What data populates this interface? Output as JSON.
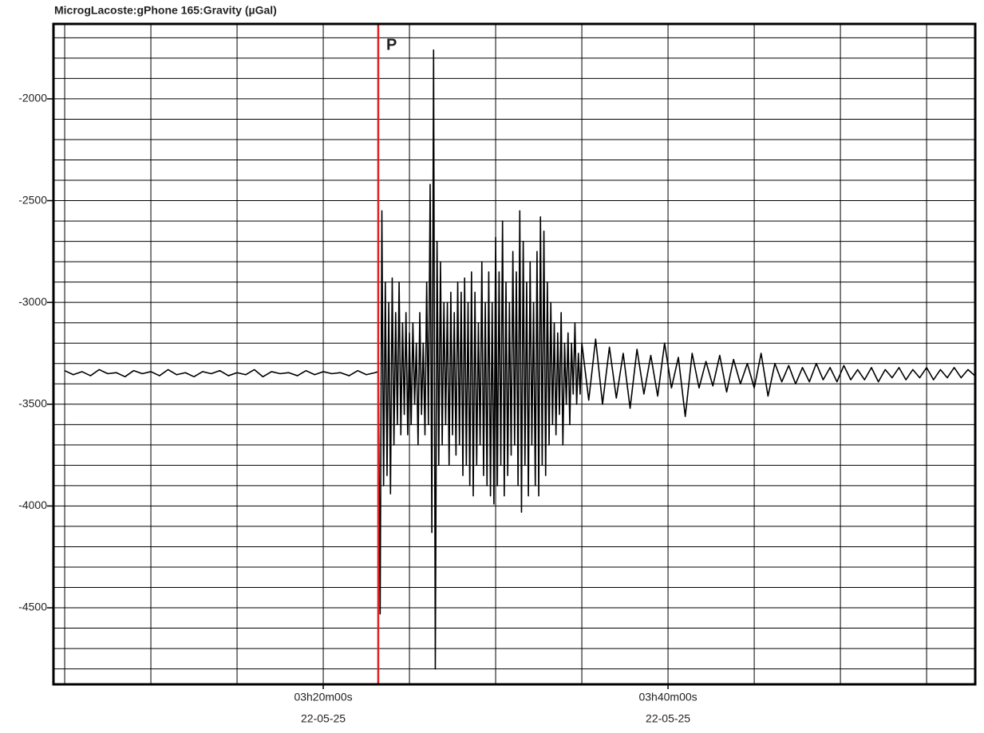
{
  "chart_data": {
    "type": "line",
    "title": "MicrogLacoste:gPhone 165:Gravity (µGal)",
    "xlim": [
      184.35,
      237.82
    ],
    "ylim": [
      -4876,
      -1632
    ],
    "xticks": [
      {
        "value": 200,
        "label": "03h20m00s"
      },
      {
        "value": 220,
        "label": "03h40m00s"
      }
    ],
    "x_date_labels": [
      "22-05-25",
      "22-05-25"
    ],
    "yticks": [
      -2000,
      -2500,
      -3000,
      -3500,
      -4000,
      -4500
    ],
    "xgrid": [
      185,
      190,
      195,
      205,
      210,
      215,
      225,
      230,
      235
    ],
    "ygrid": [
      -4800,
      -4700,
      -4600,
      -4400,
      -4300,
      -4200,
      -4100,
      -3900,
      -3800,
      -3700,
      -3600,
      -3400,
      -3300,
      -3200,
      -3100,
      -2900,
      -2800,
      -2700,
      -2600,
      -2400,
      -2300,
      -2200,
      -2100,
      -1900,
      -1800,
      -1700
    ],
    "grid": true,
    "annotations": [
      {
        "x": 203.19,
        "label": "P",
        "color": "#e02020"
      }
    ],
    "series": [
      {
        "name": "Gravity",
        "color": "#000000",
        "x": [
          185,
          185.5,
          186,
          186.5,
          187,
          187.5,
          188,
          188.5,
          189,
          189.5,
          190,
          190.5,
          191,
          191.5,
          192,
          192.5,
          193,
          193.5,
          194,
          194.5,
          195,
          195.5,
          196,
          196.5,
          197,
          197.5,
          198,
          198.5,
          199,
          199.5,
          200,
          200.5,
          201,
          201.5,
          202,
          202.5,
          203,
          203.2,
          203.3,
          203.4,
          203.5,
          203.6,
          203.7,
          203.8,
          203.9,
          204.0,
          204.1,
          204.2,
          204.3,
          204.4,
          204.5,
          204.6,
          204.7,
          204.8,
          204.9,
          205.0,
          205.1,
          205.2,
          205.3,
          205.4,
          205.5,
          205.6,
          205.7,
          205.8,
          205.9,
          206.0,
          206.1,
          206.2,
          206.3,
          206.4,
          206.5,
          206.6,
          206.7,
          206.8,
          206.9,
          207.0,
          207.1,
          207.2,
          207.3,
          207.4,
          207.5,
          207.6,
          207.7,
          207.8,
          207.9,
          208.0,
          208.1,
          208.2,
          208.3,
          208.4,
          208.5,
          208.6,
          208.7,
          208.8,
          208.9,
          209.0,
          209.1,
          209.2,
          209.3,
          209.4,
          209.5,
          209.6,
          209.7,
          209.8,
          209.9,
          210.0,
          210.1,
          210.2,
          210.3,
          210.4,
          210.5,
          210.6,
          210.7,
          210.8,
          210.9,
          211.0,
          211.1,
          211.2,
          211.3,
          211.4,
          211.5,
          211.6,
          211.7,
          211.8,
          211.9,
          212.0,
          212.1,
          212.2,
          212.3,
          212.4,
          212.5,
          212.6,
          212.7,
          212.8,
          212.9,
          213.0,
          213.1,
          213.2,
          213.3,
          213.4,
          213.5,
          213.6,
          213.7,
          213.8,
          213.9,
          214.0,
          214.1,
          214.2,
          214.3,
          214.4,
          214.5,
          214.6,
          214.7,
          214.8,
          214.9,
          215.0,
          215.4,
          215.8,
          216.2,
          216.6,
          217.0,
          217.4,
          217.8,
          218.2,
          218.6,
          219.0,
          219.4,
          219.8,
          220.2,
          220.6,
          221.0,
          221.4,
          221.8,
          222.2,
          222.6,
          223.0,
          223.4,
          223.8,
          224.2,
          224.6,
          225.0,
          225.4,
          225.8,
          226.2,
          226.6,
          227.0,
          227.4,
          227.8,
          228.2,
          228.6,
          229.0,
          229.4,
          229.8,
          230.2,
          230.6,
          231.0,
          231.4,
          231.8,
          232.2,
          232.6,
          233.0,
          233.4,
          233.8,
          234.2,
          234.6,
          235.0,
          235.4,
          235.8,
          236.2,
          236.6,
          237.0,
          237.4,
          237.8
        ],
        "values": [
          -3335,
          -3355,
          -3340,
          -3360,
          -3330,
          -3350,
          -3345,
          -3365,
          -3335,
          -3350,
          -3340,
          -3360,
          -3330,
          -3355,
          -3345,
          -3365,
          -3340,
          -3350,
          -3335,
          -3360,
          -3345,
          -3355,
          -3330,
          -3365,
          -3340,
          -3350,
          -3345,
          -3360,
          -3335,
          -3355,
          -3340,
          -3350,
          -3345,
          -3360,
          -3335,
          -3355,
          -3345,
          -3340,
          -4530,
          -2550,
          -3900,
          -2900,
          -3850,
          -3000,
          -3940,
          -2880,
          -3700,
          -3050,
          -3600,
          -2900,
          -3650,
          -3100,
          -3550,
          -3050,
          -3650,
          -3150,
          -3600,
          -3100,
          -3500,
          -3200,
          -3700,
          -3050,
          -3550,
          -3200,
          -3650,
          -2900,
          -3600,
          -2420,
          -4130,
          -1760,
          -4800,
          -2700,
          -3800,
          -2800,
          -3700,
          -3000,
          -3600,
          -3000,
          -3800,
          -2950,
          -3650,
          -3050,
          -3750,
          -2900,
          -3700,
          -2950,
          -3850,
          -2880,
          -3800,
          -3000,
          -3900,
          -2850,
          -3950,
          -2950,
          -3800,
          -3100,
          -3700,
          -2800,
          -3850,
          -3000,
          -3900,
          -2850,
          -3950,
          -3000,
          -3990,
          -2680,
          -3900,
          -2850,
          -3800,
          -2600,
          -3950,
          -2900,
          -3850,
          -3000,
          -3750,
          -2750,
          -3700,
          -2850,
          -3900,
          -2550,
          -4030,
          -2700,
          -3800,
          -2900,
          -3950,
          -2800,
          -3700,
          -3000,
          -3900,
          -2750,
          -3950,
          -2580,
          -3800,
          -2650,
          -3850,
          -2900,
          -3700,
          -3000,
          -3600,
          -3100,
          -3650,
          -3150,
          -3550,
          -3050,
          -3700,
          -3200,
          -3500,
          -3150,
          -3600,
          -3200,
          -3450,
          -3100,
          -3500,
          -3250,
          -3450,
          -3200,
          -3480,
          -3180,
          -3500,
          -3220,
          -3470,
          -3250,
          -3520,
          -3230,
          -3450,
          -3260,
          -3460,
          -3200,
          -3420,
          -3270,
          -3560,
          -3250,
          -3420,
          -3290,
          -3410,
          -3260,
          -3440,
          -3280,
          -3400,
          -3300,
          -3420,
          -3250,
          -3460,
          -3300,
          -3390,
          -3310,
          -3400,
          -3320,
          -3390,
          -3300,
          -3380,
          -3320,
          -3390,
          -3310,
          -3380,
          -3330,
          -3380,
          -3320,
          -3390,
          -3330,
          -3370,
          -3320,
          -3380,
          -3330,
          -3370,
          -3320,
          -3380,
          -3330,
          -3370,
          -3320,
          -3370,
          -3330,
          -3360
        ]
      }
    ]
  }
}
